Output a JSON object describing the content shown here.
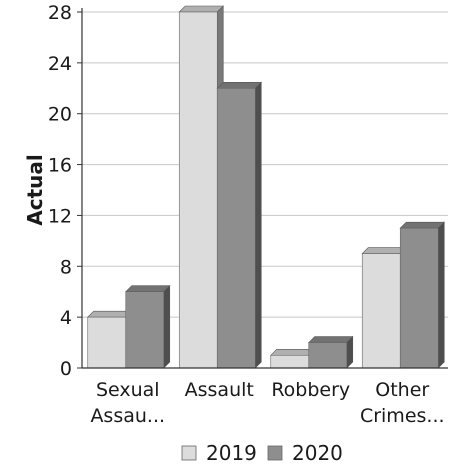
{
  "chart_data": {
    "type": "bar",
    "categories": [
      [
        "Sexual",
        "Assau..."
      ],
      [
        "Assault"
      ],
      [
        "Robbery"
      ],
      [
        "Other",
        "Crimes..."
      ]
    ],
    "series": [
      {
        "name": "2019",
        "values": [
          4,
          28,
          1,
          9
        ],
        "color": "#dcdcdc"
      },
      {
        "name": "2020",
        "values": [
          6,
          22,
          2,
          11
        ],
        "color": "#8e8e8e"
      }
    ],
    "ylabel": "Actual",
    "ylim": [
      0,
      28
    ],
    "yticks": [
      0,
      4,
      8,
      12,
      16,
      20,
      24,
      28
    ],
    "grid": true,
    "legend_position": "bottom"
  }
}
